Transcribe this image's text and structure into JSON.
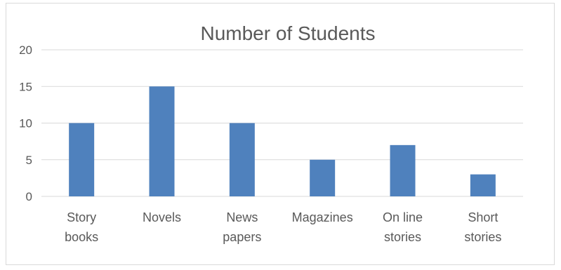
{
  "chart_data": {
    "type": "bar",
    "title": "Number of Students",
    "xlabel": "",
    "ylabel": "",
    "categories": [
      [
        "Story",
        "books"
      ],
      [
        "Novels"
      ],
      [
        "News",
        "papers"
      ],
      [
        "Magazines"
      ],
      [
        "On line",
        "stories"
      ],
      [
        "Short",
        "stories"
      ]
    ],
    "values": [
      10,
      15,
      10,
      5,
      7,
      3
    ],
    "ylim": [
      0,
      20
    ],
    "yticks": [
      0,
      5,
      10,
      15,
      20
    ],
    "grid": true,
    "legend": "none",
    "bar_color": "#4f81bd"
  }
}
